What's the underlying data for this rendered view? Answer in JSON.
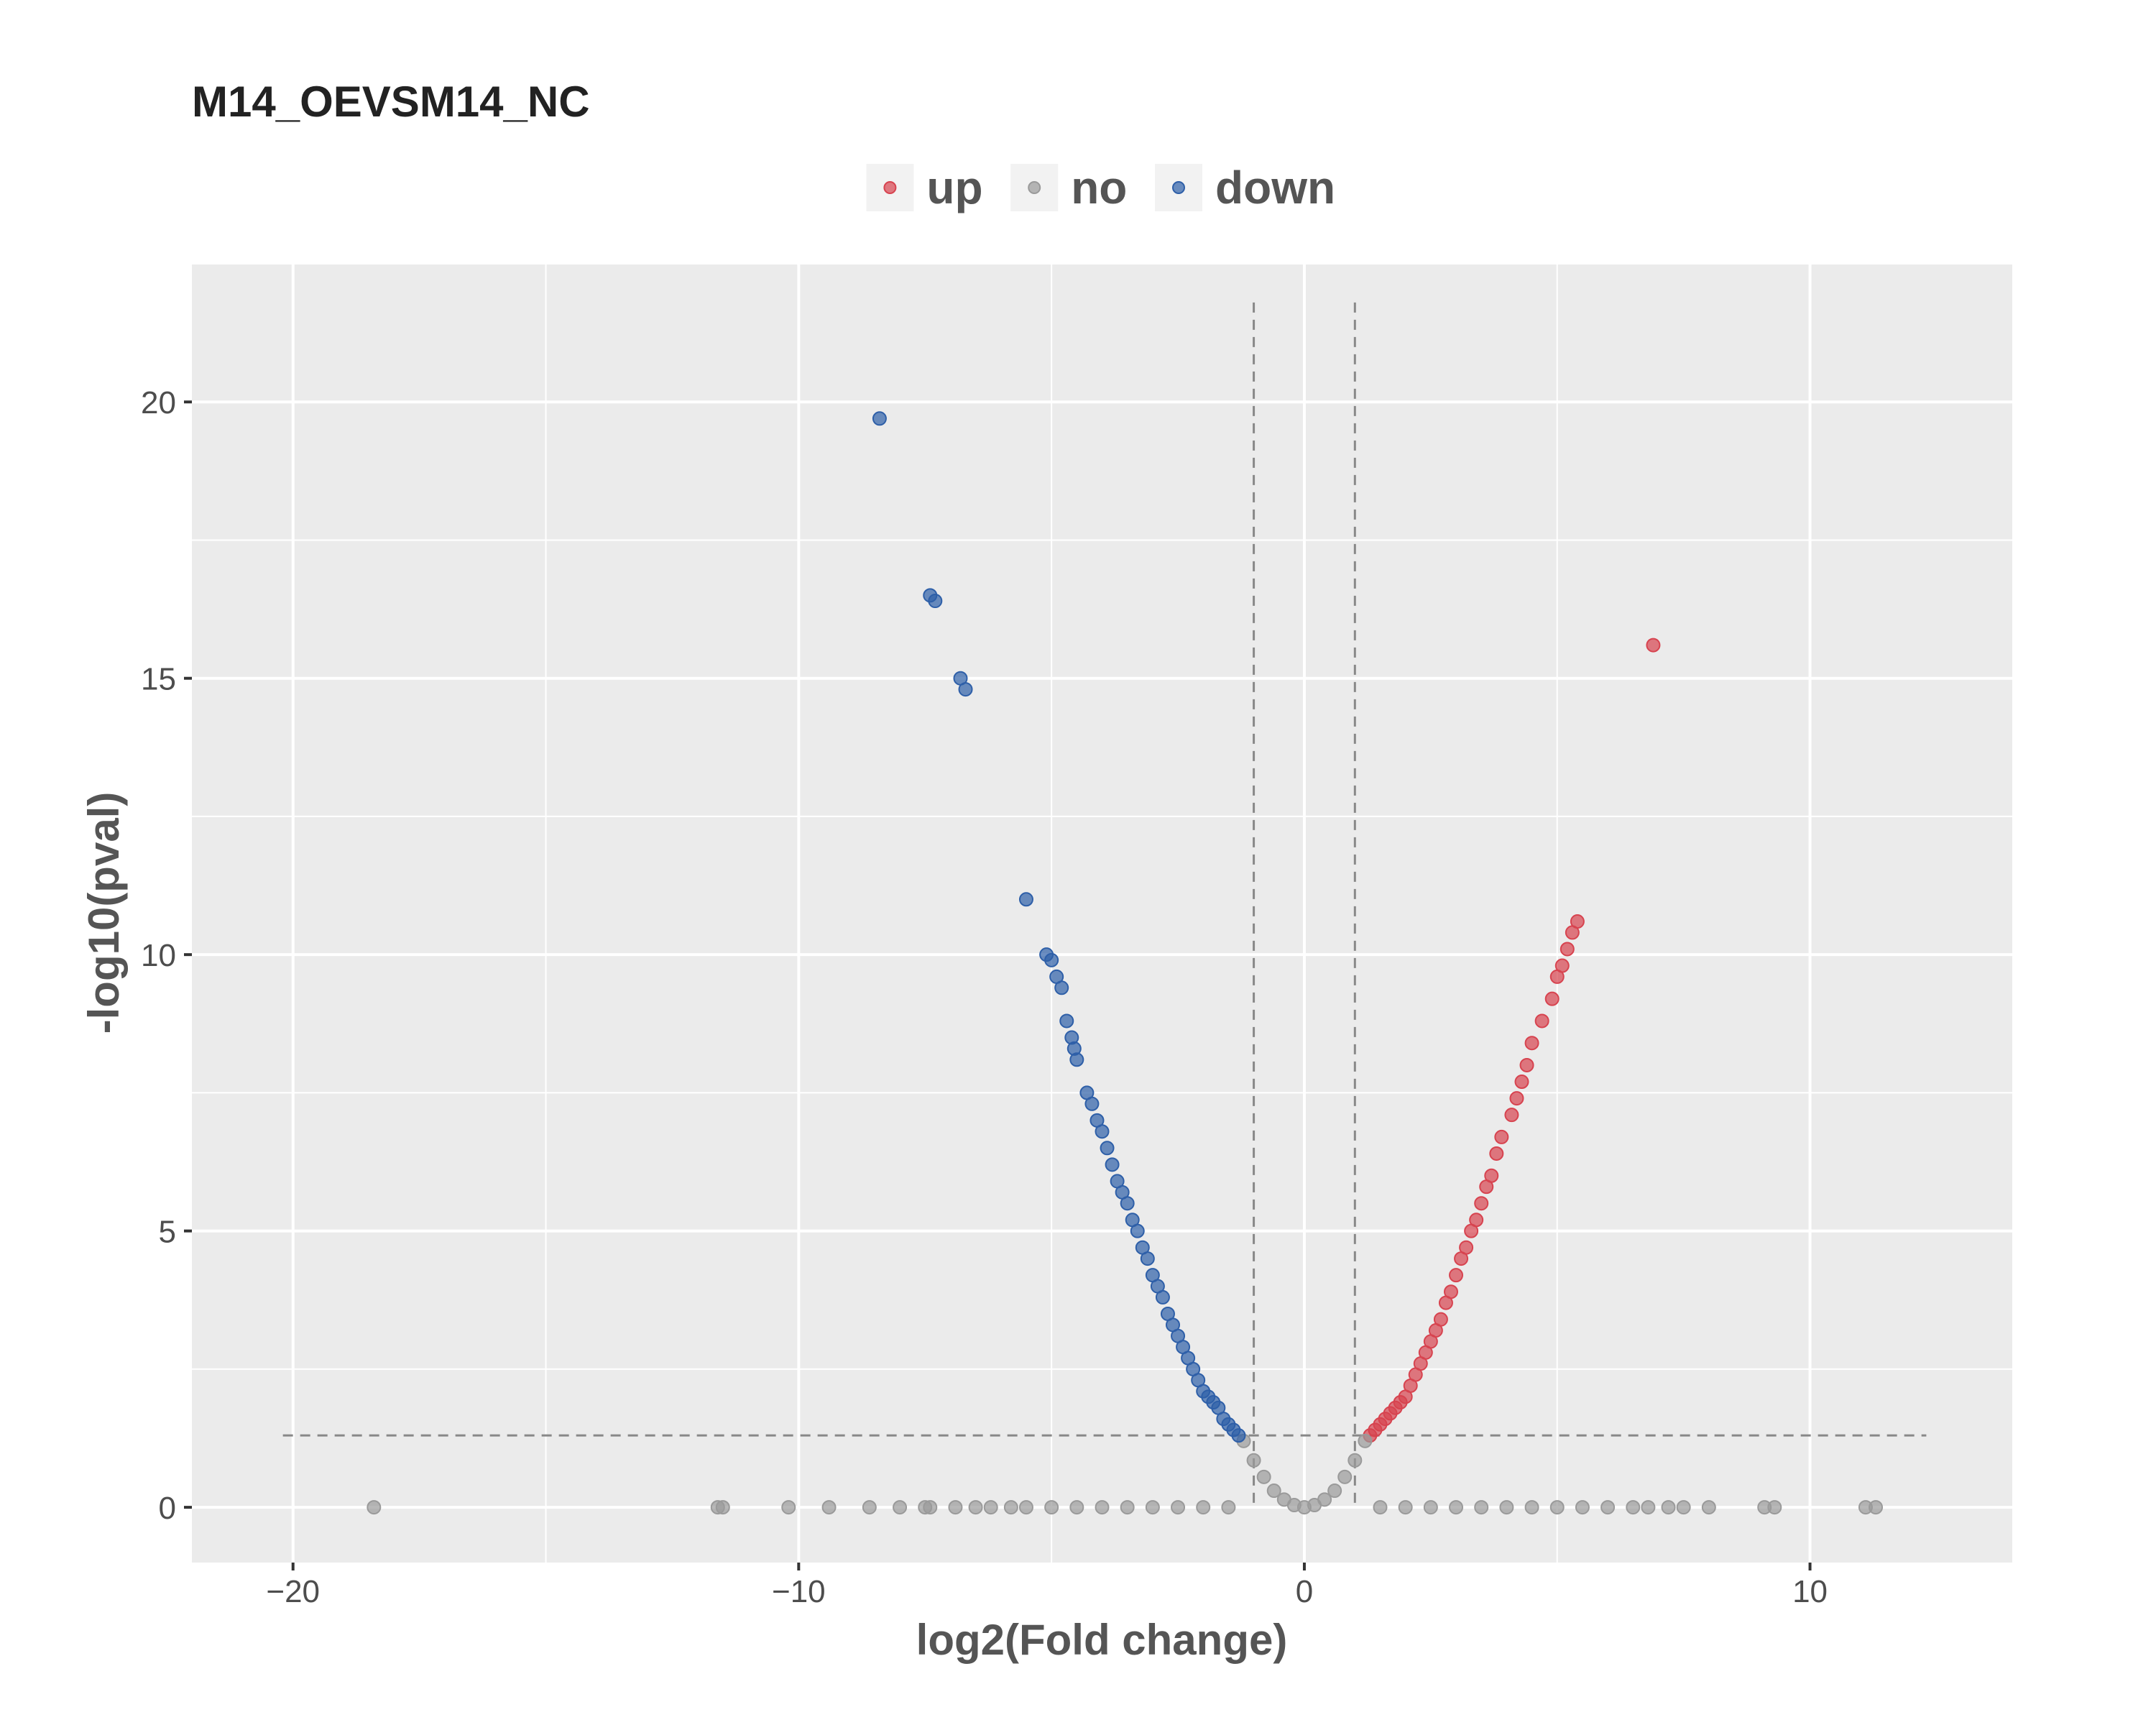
{
  "chart_data": {
    "type": "scatter",
    "title": "M14_OEVSM14_NC",
    "xlabel": "log2(Fold change)",
    "ylabel": "-log10(pval)",
    "xlim": [
      -22,
      14
    ],
    "ylim": [
      -1,
      22.5
    ],
    "x_ticks": [
      -20,
      -10,
      0,
      10
    ],
    "x_tick_labels": [
      "−20",
      "−10",
      "0",
      "10"
    ],
    "y_ticks": [
      0,
      5,
      10,
      15,
      20
    ],
    "y_tick_labels": [
      "0",
      "5",
      "10",
      "15",
      "20"
    ],
    "grid": true,
    "legend_position": "top",
    "thresholds": {
      "log2fc": [
        -1,
        1
      ],
      "neg_log10_pval": 1.3
    },
    "colors": {
      "up": "#d7434f",
      "no": "#9a9a9a",
      "down": "#2e5fa8",
      "panel": "#ebebeb",
      "gridline": "#ffffff",
      "threshold_line": "#888888"
    },
    "series": [
      {
        "name": "up",
        "color": "#d7434f",
        "x": [
          6.9,
          5.4,
          5.3,
          5.2,
          5.1,
          5.0,
          4.9,
          4.7,
          4.5,
          4.4,
          4.3,
          4.2,
          4.1,
          3.9,
          3.8,
          3.7,
          3.6,
          3.5,
          3.4,
          3.3,
          3.2,
          3.1,
          3.0,
          2.9,
          2.8,
          2.7,
          2.6,
          2.5,
          2.4,
          2.3,
          2.2,
          2.1,
          2.0,
          1.9,
          1.8,
          1.7,
          1.6,
          1.5,
          1.4,
          1.3
        ],
        "y": [
          15.6,
          10.6,
          10.4,
          10.1,
          9.8,
          9.6,
          9.2,
          8.8,
          8.4,
          8.0,
          7.7,
          7.4,
          7.1,
          6.7,
          6.4,
          6.0,
          5.8,
          5.5,
          5.2,
          5.0,
          4.7,
          4.5,
          4.2,
          3.9,
          3.7,
          3.4,
          3.2,
          3.0,
          2.8,
          2.6,
          2.4,
          2.2,
          2.0,
          1.9,
          1.8,
          1.7,
          1.6,
          1.5,
          1.4,
          1.3
        ]
      },
      {
        "name": "no",
        "color": "#9a9a9a",
        "x": [
          -18.4,
          -11.6,
          -11.5,
          -10.2,
          -9.4,
          -8.6,
          -8.0,
          -7.5,
          -7.4,
          -6.9,
          -6.5,
          -6.2,
          -5.8,
          -5.5,
          -5.0,
          -4.5,
          -4.0,
          -3.5,
          -3.0,
          -2.5,
          -2.0,
          -1.5,
          -1.2,
          -1.0,
          -0.8,
          -0.6,
          -0.4,
          -0.2,
          0.0,
          0.2,
          0.4,
          0.6,
          0.8,
          1.0,
          1.2,
          1.5,
          2.0,
          2.5,
          3.0,
          3.5,
          4.0,
          4.5,
          5.0,
          5.5,
          6.0,
          6.5,
          6.8,
          7.2,
          7.5,
          8.0,
          9.1,
          9.3,
          11.1,
          11.3
        ],
        "y": [
          0.0,
          0.0,
          0.0,
          0.0,
          0.0,
          0.0,
          0.0,
          0.0,
          0.0,
          0.0,
          0.0,
          0.0,
          0.0,
          0.0,
          0.0,
          0.0,
          0.0,
          0.0,
          0.0,
          0.0,
          0.0,
          0.0,
          1.2,
          0.85,
          0.55,
          0.3,
          0.14,
          0.04,
          0.0,
          0.04,
          0.14,
          0.3,
          0.55,
          0.85,
          1.2,
          0.0,
          0.0,
          0.0,
          0.0,
          0.0,
          0.0,
          0.0,
          0.0,
          0.0,
          0.0,
          0.0,
          0.0,
          0.0,
          0.0,
          0.0,
          0.0,
          0.0,
          0.0,
          0.0
        ]
      },
      {
        "name": "down",
        "color": "#2e5fa8",
        "x": [
          -8.4,
          -7.4,
          -7.3,
          -6.8,
          -6.7,
          -5.5,
          -5.1,
          -5.0,
          -4.9,
          -4.8,
          -4.7,
          -4.6,
          -4.55,
          -4.5,
          -4.3,
          -4.2,
          -4.1,
          -4.0,
          -3.9,
          -3.8,
          -3.7,
          -3.6,
          -3.5,
          -3.4,
          -3.3,
          -3.2,
          -3.1,
          -3.0,
          -2.9,
          -2.8,
          -2.7,
          -2.6,
          -2.5,
          -2.4,
          -2.3,
          -2.2,
          -2.1,
          -2.0,
          -1.9,
          -1.8,
          -1.7,
          -1.6,
          -1.5,
          -1.4,
          -1.3
        ],
        "y": [
          19.7,
          16.5,
          16.4,
          15.0,
          14.8,
          11.0,
          10.0,
          9.9,
          9.6,
          9.4,
          8.8,
          8.5,
          8.3,
          8.1,
          7.5,
          7.3,
          7.0,
          6.8,
          6.5,
          6.2,
          5.9,
          5.7,
          5.5,
          5.2,
          5.0,
          4.7,
          4.5,
          4.2,
          4.0,
          3.8,
          3.5,
          3.3,
          3.1,
          2.9,
          2.7,
          2.5,
          2.3,
          2.1,
          2.0,
          1.9,
          1.8,
          1.6,
          1.5,
          1.4,
          1.3
        ]
      }
    ]
  }
}
